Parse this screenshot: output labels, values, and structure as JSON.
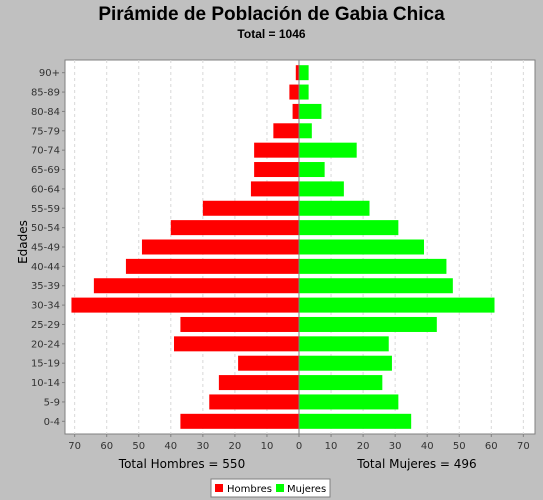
{
  "chart_data": {
    "type": "bar",
    "orientation": "horizontal-population-pyramid",
    "title": "Pirámide de Población de Gabia Chica",
    "subtitle": "Total = 1046",
    "ylabel": "Edades",
    "left_xlabel": "Total Hombres = 550",
    "right_xlabel": "Total Mujeres = 496",
    "xlim": [
      -70,
      70
    ],
    "xticks": [
      70,
      60,
      50,
      40,
      30,
      20,
      10,
      0,
      10,
      20,
      30,
      40,
      50,
      60,
      70
    ],
    "categories": [
      "90+",
      "85-89",
      "80-84",
      "75-79",
      "70-74",
      "65-69",
      "60-64",
      "55-59",
      "50-54",
      "45-49",
      "40-44",
      "35-39",
      "30-34",
      "25-29",
      "20-24",
      "15-19",
      "10-14",
      "5-9",
      "0-4"
    ],
    "series": [
      {
        "name": "Hombres",
        "color": "#ff0000",
        "side": "left",
        "values": [
          1,
          3,
          2,
          8,
          14,
          14,
          15,
          30,
          40,
          49,
          54,
          64,
          71,
          37,
          39,
          19,
          25,
          28,
          37
        ]
      },
      {
        "name": "Mujeres",
        "color": "#00ff00",
        "side": "right",
        "values": [
          3,
          3,
          7,
          4,
          18,
          8,
          14,
          22,
          31,
          39,
          46,
          48,
          61,
          43,
          28,
          29,
          26,
          31,
          35
        ]
      }
    ],
    "grid": true,
    "legend": "bottom"
  },
  "colors": {
    "background": "#c0c0c0",
    "plot_background": "#ffffff",
    "gridline": "#d8d8d8",
    "hombres": "#ff0000",
    "mujeres": "#00ff00"
  }
}
